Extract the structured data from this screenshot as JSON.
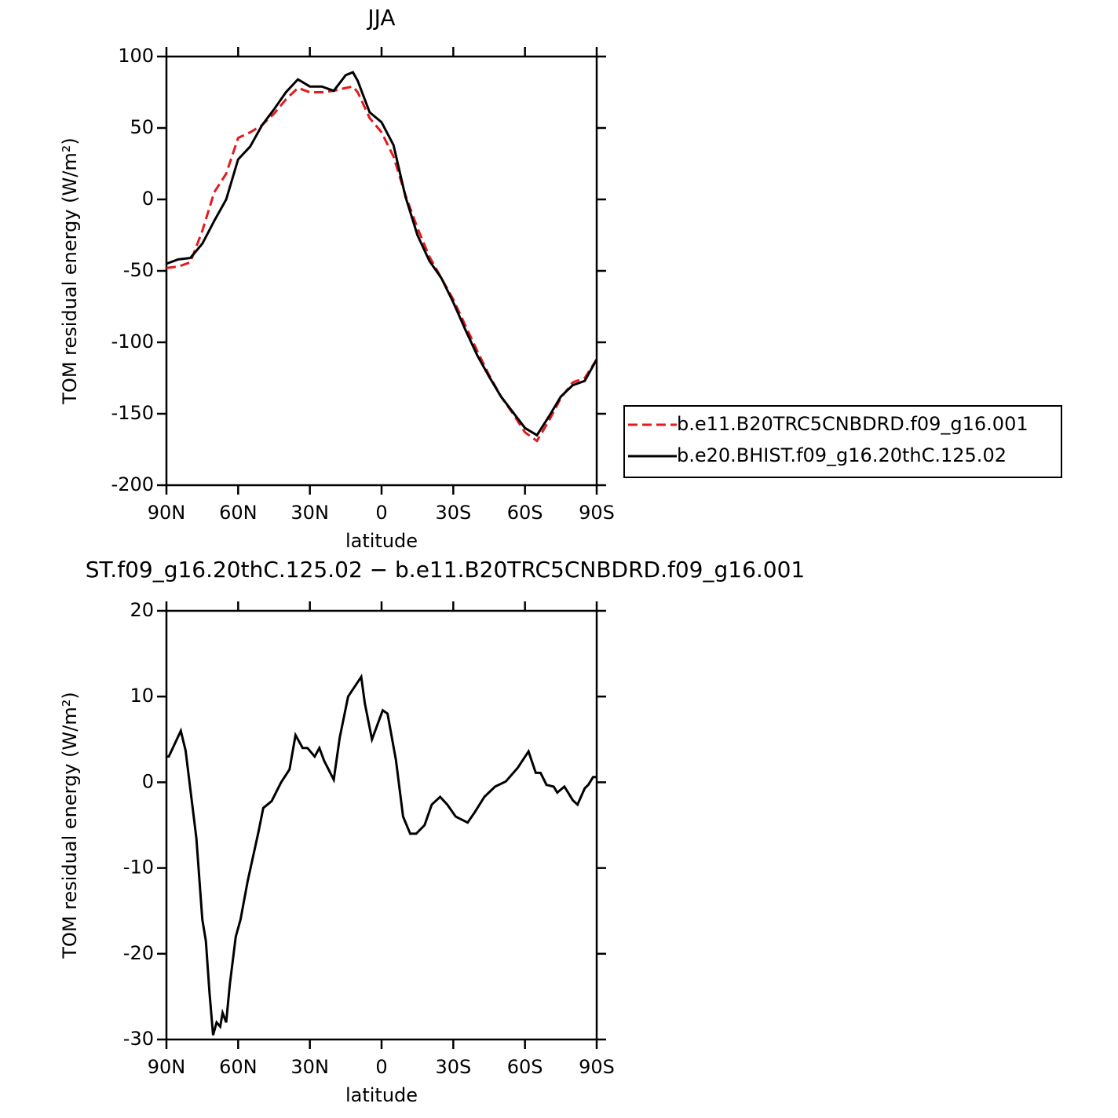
{
  "chart_data": [
    {
      "type": "line",
      "title": "JJA",
      "xlabel": "latitude",
      "ylabel": "TOM residual energy (W/m²)",
      "x": [
        90,
        85,
        80,
        75,
        70,
        65,
        60,
        55,
        50,
        45,
        40,
        35,
        30,
        25,
        20,
        15,
        12,
        10,
        5,
        0,
        -5,
        -10,
        -15,
        -20,
        -25,
        -30,
        -35,
        -40,
        -45,
        -50,
        -55,
        -60,
        -65,
        -70,
        -75,
        -80,
        -85,
        -90
      ],
      "series": [
        {
          "name": "b.e11.B20TRC5CNBDRD.f09_g16.001",
          "color": "#e41a1c",
          "style": "dashed",
          "values": [
            -48,
            -47,
            -44,
            -22,
            5,
            18,
            43,
            47,
            52,
            60,
            70,
            78,
            75,
            75,
            76,
            78,
            79,
            75,
            57,
            47,
            30,
            3,
            -20,
            -40,
            -55,
            -70,
            -88,
            -106,
            -123,
            -138,
            -150,
            -163,
            -169,
            -155,
            -139,
            -128,
            -125,
            -112
          ]
        },
        {
          "name": "b.e20.BHIST.f09_g16.20thC.125.02",
          "color": "#000000",
          "style": "solid",
          "values": [
            -45,
            -42,
            -41,
            -31,
            -15,
            0,
            28,
            37,
            52,
            63,
            75,
            84,
            79,
            79,
            76,
            87,
            89,
            83,
            61,
            54,
            38,
            2,
            -25,
            -43,
            -55,
            -72,
            -91,
            -109,
            -124,
            -138,
            -149,
            -160,
            -165,
            -152,
            -138,
            -130,
            -127,
            -112
          ]
        }
      ],
      "xlim": [
        90,
        -90
      ],
      "xticks": [
        {
          "value": 90,
          "label": "90N"
        },
        {
          "value": 60,
          "label": "60N"
        },
        {
          "value": 30,
          "label": "30N"
        },
        0,
        {
          "value": -30,
          "label": "30S"
        },
        {
          "value": -60,
          "label": "60S"
        },
        {
          "value": -90,
          "label": "90S"
        }
      ],
      "ylim": [
        -200,
        100
      ],
      "yticks": [
        -200,
        -150,
        -100,
        -50,
        0,
        50,
        100
      ],
      "legend": "right"
    },
    {
      "type": "line",
      "title": "ST.f09_g16.20thC.125.02 − b.e11.B20TRC5CNBDRD.f09_g16.001",
      "xlabel": "latitude",
      "ylabel": "TOM residual energy (W/m²)",
      "x": [
        90,
        89,
        84,
        82,
        77.5,
        75,
        73.5,
        72,
        70.5,
        69,
        67.5,
        66.5,
        65,
        63.5,
        61,
        59,
        56,
        51.5,
        49.5,
        46,
        42,
        38.5,
        36,
        33,
        31,
        28,
        26,
        24,
        20,
        17.5,
        14,
        8.5,
        7,
        4,
        -0.5,
        -2.5,
        -6,
        -9,
        -12,
        -14.5,
        -18,
        -21,
        -24.5,
        -27.5,
        -31,
        -36,
        -39,
        -43,
        -47.5,
        -52,
        -57,
        -61.5,
        -64.5,
        -66.5,
        -69,
        -72,
        -73.5,
        -76.5,
        -80,
        -82,
        -85,
        -86.5,
        -88.5,
        -90
      ],
      "series": [
        {
          "color": "#000000",
          "style": "solid",
          "values": [
            3,
            3,
            6,
            3.7,
            -6.5,
            -16,
            -18.5,
            -24.5,
            -29.5,
            -28,
            -28.5,
            -26.9,
            -28,
            -23.6,
            -18,
            -16,
            -11.5,
            -5.8,
            -3,
            -2.2,
            0,
            1.5,
            5.5,
            4,
            4,
            3,
            4,
            2.5,
            0.3,
            5.2,
            10,
            12.3,
            9.2,
            5,
            8.4,
            8,
            2.6,
            -4,
            -6,
            -6,
            -5,
            -2.6,
            -1.7,
            -2.6,
            -4,
            -4.7,
            -3.5,
            -1.7,
            -0.5,
            0.1,
            1.7,
            3.6,
            1.1,
            1.1,
            -0.3,
            -0.5,
            -1.2,
            -0.5,
            -2.1,
            -2.6,
            -0.7,
            -0.3,
            0.6,
            0.6
          ]
        }
      ],
      "xlim": [
        90,
        -90
      ],
      "xticks": [
        {
          "value": 90,
          "label": "90N"
        },
        {
          "value": 60,
          "label": "60N"
        },
        {
          "value": 30,
          "label": "30N"
        },
        0,
        {
          "value": -30,
          "label": "30S"
        },
        {
          "value": -60,
          "label": "60S"
        },
        {
          "value": -90,
          "label": "90S"
        }
      ],
      "ylim": [
        -30,
        20
      ],
      "yticks": [
        -30,
        -20,
        -10,
        0,
        10,
        20
      ]
    }
  ]
}
